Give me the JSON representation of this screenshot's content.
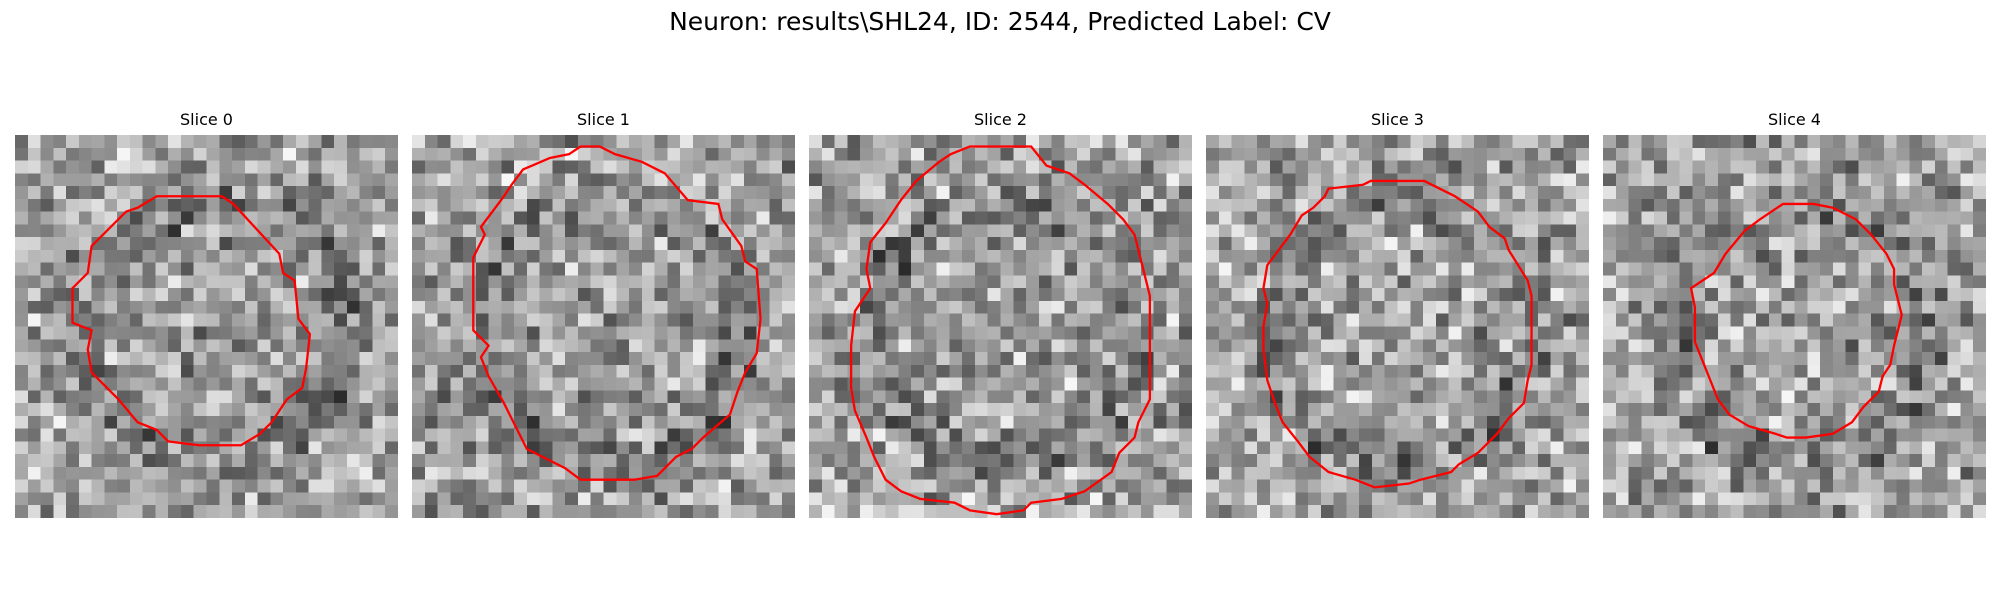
{
  "figure": {
    "title": "Neuron: results\\SHL24, ID: 2544, Predicted Label: CV",
    "contour_color": "#ff0000",
    "grid": "30x30 grayscale noise patch",
    "slices": [
      {
        "label": "Slice 0",
        "seed": 11,
        "contour": [
          [
            0.2,
            0.51
          ],
          [
            0.15,
            0.49
          ],
          [
            0.15,
            0.4
          ],
          [
            0.19,
            0.36
          ],
          [
            0.2,
            0.29
          ],
          [
            0.29,
            0.2
          ],
          [
            0.32,
            0.19
          ],
          [
            0.37,
            0.16
          ],
          [
            0.54,
            0.16
          ],
          [
            0.57,
            0.18
          ],
          [
            0.69,
            0.31
          ],
          [
            0.7,
            0.36
          ],
          [
            0.73,
            0.38
          ],
          [
            0.74,
            0.48
          ],
          [
            0.77,
            0.52
          ],
          [
            0.76,
            0.61
          ],
          [
            0.75,
            0.66
          ],
          [
            0.71,
            0.69
          ],
          [
            0.67,
            0.75
          ],
          [
            0.64,
            0.78
          ],
          [
            0.59,
            0.81
          ],
          [
            0.48,
            0.81
          ],
          [
            0.4,
            0.8
          ],
          [
            0.37,
            0.77
          ],
          [
            0.32,
            0.75
          ],
          [
            0.27,
            0.69
          ],
          [
            0.23,
            0.65
          ],
          [
            0.2,
            0.62
          ],
          [
            0.19,
            0.56
          ]
        ]
      },
      {
        "label": "Slice 1",
        "seed": 23,
        "contour": [
          [
            0.2,
            0.55
          ],
          [
            0.16,
            0.51
          ],
          [
            0.16,
            0.32
          ],
          [
            0.19,
            0.26
          ],
          [
            0.18,
            0.24
          ],
          [
            0.24,
            0.16
          ],
          [
            0.26,
            0.13
          ],
          [
            0.29,
            0.09
          ],
          [
            0.36,
            0.06
          ],
          [
            0.41,
            0.05
          ],
          [
            0.44,
            0.03
          ],
          [
            0.49,
            0.03
          ],
          [
            0.53,
            0.05
          ],
          [
            0.6,
            0.07
          ],
          [
            0.66,
            0.1
          ],
          [
            0.72,
            0.17
          ],
          [
            0.8,
            0.18
          ],
          [
            0.81,
            0.22
          ],
          [
            0.86,
            0.29
          ],
          [
            0.87,
            0.33
          ],
          [
            0.9,
            0.35
          ],
          [
            0.91,
            0.48
          ],
          [
            0.9,
            0.57
          ],
          [
            0.87,
            0.62
          ],
          [
            0.85,
            0.67
          ],
          [
            0.83,
            0.73
          ],
          [
            0.76,
            0.79
          ],
          [
            0.73,
            0.82
          ],
          [
            0.69,
            0.84
          ],
          [
            0.64,
            0.89
          ],
          [
            0.58,
            0.9
          ],
          [
            0.44,
            0.9
          ],
          [
            0.4,
            0.87
          ],
          [
            0.3,
            0.82
          ],
          [
            0.27,
            0.76
          ],
          [
            0.24,
            0.7
          ],
          [
            0.2,
            0.63
          ],
          [
            0.18,
            0.58
          ]
        ]
      },
      {
        "label": "Slice 2",
        "seed": 37,
        "contour": [
          [
            0.16,
            0.4
          ],
          [
            0.15,
            0.35
          ],
          [
            0.16,
            0.28
          ],
          [
            0.2,
            0.23
          ],
          [
            0.24,
            0.17
          ],
          [
            0.28,
            0.12
          ],
          [
            0.34,
            0.07
          ],
          [
            0.37,
            0.05
          ],
          [
            0.42,
            0.03
          ],
          [
            0.58,
            0.03
          ],
          [
            0.62,
            0.08
          ],
          [
            0.68,
            0.1
          ],
          [
            0.72,
            0.13
          ],
          [
            0.78,
            0.18
          ],
          [
            0.82,
            0.22
          ],
          [
            0.85,
            0.26
          ],
          [
            0.86,
            0.3
          ],
          [
            0.88,
            0.38
          ],
          [
            0.89,
            0.42
          ],
          [
            0.89,
            0.69
          ],
          [
            0.86,
            0.75
          ],
          [
            0.85,
            0.79
          ],
          [
            0.81,
            0.83
          ],
          [
            0.79,
            0.88
          ],
          [
            0.72,
            0.93
          ],
          [
            0.66,
            0.95
          ],
          [
            0.58,
            0.96
          ],
          [
            0.56,
            0.98
          ],
          [
            0.49,
            0.99
          ],
          [
            0.42,
            0.98
          ],
          [
            0.38,
            0.96
          ],
          [
            0.29,
            0.95
          ],
          [
            0.24,
            0.93
          ],
          [
            0.2,
            0.9
          ],
          [
            0.17,
            0.84
          ],
          [
            0.15,
            0.79
          ],
          [
            0.12,
            0.72
          ],
          [
            0.11,
            0.66
          ],
          [
            0.11,
            0.55
          ],
          [
            0.12,
            0.46
          ]
        ]
      },
      {
        "label": "Slice 3",
        "seed": 49,
        "contour": [
          [
            0.16,
            0.44
          ],
          [
            0.15,
            0.4
          ],
          [
            0.16,
            0.34
          ],
          [
            0.22,
            0.26
          ],
          [
            0.25,
            0.21
          ],
          [
            0.28,
            0.19
          ],
          [
            0.31,
            0.16
          ],
          [
            0.32,
            0.14
          ],
          [
            0.41,
            0.13
          ],
          [
            0.43,
            0.12
          ],
          [
            0.57,
            0.12
          ],
          [
            0.59,
            0.13
          ],
          [
            0.63,
            0.15
          ],
          [
            0.65,
            0.16
          ],
          [
            0.71,
            0.2
          ],
          [
            0.74,
            0.24
          ],
          [
            0.78,
            0.27
          ],
          [
            0.79,
            0.3
          ],
          [
            0.84,
            0.38
          ],
          [
            0.85,
            0.42
          ],
          [
            0.85,
            0.6
          ],
          [
            0.84,
            0.64
          ],
          [
            0.83,
            0.7
          ],
          [
            0.79,
            0.74
          ],
          [
            0.76,
            0.78
          ],
          [
            0.71,
            0.83
          ],
          [
            0.66,
            0.86
          ],
          [
            0.64,
            0.88
          ],
          [
            0.56,
            0.9
          ],
          [
            0.53,
            0.91
          ],
          [
            0.44,
            0.92
          ],
          [
            0.39,
            0.9
          ],
          [
            0.32,
            0.88
          ],
          [
            0.27,
            0.84
          ],
          [
            0.24,
            0.8
          ],
          [
            0.2,
            0.75
          ],
          [
            0.18,
            0.7
          ],
          [
            0.16,
            0.64
          ],
          [
            0.15,
            0.56
          ],
          [
            0.15,
            0.5
          ]
        ]
      },
      {
        "label": "Slice 4",
        "seed": 61,
        "contour": [
          [
            0.24,
            0.45
          ],
          [
            0.23,
            0.4
          ],
          [
            0.29,
            0.36
          ],
          [
            0.32,
            0.31
          ],
          [
            0.37,
            0.25
          ],
          [
            0.41,
            0.22
          ],
          [
            0.44,
            0.2
          ],
          [
            0.47,
            0.18
          ],
          [
            0.55,
            0.18
          ],
          [
            0.6,
            0.19
          ],
          [
            0.66,
            0.22
          ],
          [
            0.7,
            0.26
          ],
          [
            0.74,
            0.31
          ],
          [
            0.76,
            0.35
          ],
          [
            0.76,
            0.39
          ],
          [
            0.77,
            0.43
          ],
          [
            0.78,
            0.47
          ],
          [
            0.77,
            0.51
          ],
          [
            0.76,
            0.55
          ],
          [
            0.75,
            0.6
          ],
          [
            0.73,
            0.63
          ],
          [
            0.72,
            0.67
          ],
          [
            0.68,
            0.71
          ],
          [
            0.65,
            0.75
          ],
          [
            0.6,
            0.78
          ],
          [
            0.53,
            0.79
          ],
          [
            0.48,
            0.79
          ],
          [
            0.45,
            0.78
          ],
          [
            0.38,
            0.76
          ],
          [
            0.33,
            0.73
          ],
          [
            0.3,
            0.69
          ],
          [
            0.28,
            0.64
          ],
          [
            0.26,
            0.59
          ],
          [
            0.24,
            0.54
          ],
          [
            0.24,
            0.49
          ]
        ]
      }
    ]
  }
}
